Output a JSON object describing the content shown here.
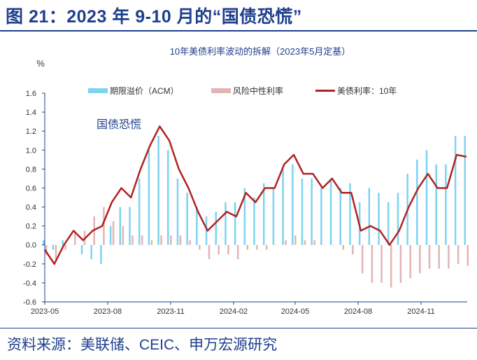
{
  "header": {
    "title": "图 21：2023 年 9-10 月的“国债恐慌”"
  },
  "footer": {
    "source": "资料来源：美联储、CEIC、申万宏源研究"
  },
  "chart_data": {
    "type": "bar+line",
    "title": "10年美债利率波动的拆解（2023年5月定基）",
    "ylabel": "%",
    "ylim": [
      -0.6,
      1.6
    ],
    "yticks": [
      "1.6",
      "1.4",
      "1.2",
      "1.0",
      "0.8",
      "0.6",
      "0.4",
      "0.2",
      "0.0",
      "-0.2",
      "-0.4",
      "-0.6"
    ],
    "xticks": [
      "2023-05",
      "2023-08",
      "2023-11",
      "2024-02",
      "2024-05",
      "2024-08",
      "2024-11"
    ],
    "annotation": "国债恐慌",
    "legend_position": "top",
    "colors": {
      "term_premium": "#7dd3f0",
      "risk_neutral": "#e3b4b4",
      "yield": "#b22222",
      "axis": "#1f3f8c"
    },
    "x": [
      "2023-05-01",
      "2023-05-15",
      "2023-05-29",
      "2023-06-12",
      "2023-06-26",
      "2023-07-10",
      "2023-07-24",
      "2023-08-07",
      "2023-08-21",
      "2023-09-04",
      "2023-09-18",
      "2023-10-02",
      "2023-10-16",
      "2023-10-30",
      "2023-11-13",
      "2023-11-27",
      "2023-12-11",
      "2023-12-25",
      "2024-01-08",
      "2024-01-22",
      "2024-02-05",
      "2024-02-19",
      "2024-03-04",
      "2024-03-18",
      "2024-04-01",
      "2024-04-15",
      "2024-04-29",
      "2024-05-13",
      "2024-05-27",
      "2024-06-10",
      "2024-06-24",
      "2024-07-08",
      "2024-07-22",
      "2024-08-05",
      "2024-08-19",
      "2024-09-02",
      "2024-09-16",
      "2024-09-30",
      "2024-10-14",
      "2024-10-28",
      "2024-11-11",
      "2024-11-25",
      "2024-12-09",
      "2024-12-23",
      "2025-01-06"
    ],
    "series": [
      {
        "name": "期限溢价（ACM）",
        "type": "bar",
        "values": [
          0.05,
          -0.05,
          0.05,
          0.0,
          -0.1,
          -0.15,
          -0.2,
          0.2,
          0.4,
          0.4,
          0.7,
          1.0,
          1.15,
          1.0,
          0.7,
          0.55,
          0.4,
          0.3,
          0.35,
          0.45,
          0.45,
          0.6,
          0.5,
          0.65,
          0.6,
          0.8,
          0.85,
          0.7,
          0.7,
          0.6,
          0.7,
          0.6,
          0.65,
          0.45,
          0.6,
          0.55,
          0.45,
          0.55,
          0.75,
          0.9,
          1.0,
          0.85,
          0.85,
          1.15,
          1.15
        ]
      },
      {
        "name": "风险中性利率",
        "type": "bar",
        "values": [
          -0.1,
          -0.15,
          -0.05,
          0.15,
          0.15,
          0.3,
          0.4,
          0.25,
          0.2,
          0.1,
          0.1,
          0.05,
          0.1,
          0.1,
          0.1,
          0.05,
          -0.05,
          -0.15,
          -0.1,
          -0.1,
          -0.15,
          -0.05,
          -0.05,
          -0.05,
          0.0,
          0.05,
          0.1,
          0.05,
          0.05,
          0.0,
          0.0,
          -0.05,
          -0.1,
          -0.3,
          -0.4,
          -0.4,
          -0.45,
          -0.4,
          -0.35,
          -0.3,
          -0.25,
          -0.25,
          -0.25,
          -0.2,
          -0.22
        ]
      },
      {
        "name": "美债利率：10年",
        "type": "line",
        "values": [
          -0.05,
          -0.2,
          0.0,
          0.15,
          0.05,
          0.15,
          0.2,
          0.45,
          0.6,
          0.5,
          0.8,
          1.05,
          1.25,
          1.1,
          0.8,
          0.6,
          0.35,
          0.15,
          0.25,
          0.35,
          0.3,
          0.55,
          0.45,
          0.6,
          0.6,
          0.85,
          0.95,
          0.75,
          0.75,
          0.6,
          0.7,
          0.55,
          0.55,
          0.15,
          0.2,
          0.15,
          0.0,
          0.15,
          0.4,
          0.6,
          0.75,
          0.6,
          0.6,
          0.95,
          0.93
        ]
      }
    ]
  }
}
